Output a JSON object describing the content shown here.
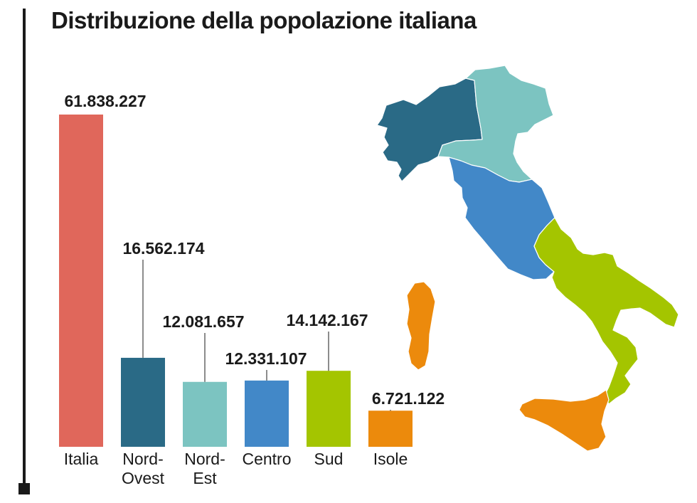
{
  "title": "Distribuzione della popolazione italiana",
  "chart_data": {
    "type": "bar",
    "title": "Distribuzione della popolazione italiana",
    "categories": [
      "Italia",
      "Nord-Ovest",
      "Nord-Est",
      "Centro",
      "Sud",
      "Isole"
    ],
    "category_lines": [
      [
        "Italia"
      ],
      [
        "Nord-",
        "Ovest"
      ],
      [
        "Nord-",
        "Est"
      ],
      [
        "Centro"
      ],
      [
        "Sud"
      ],
      [
        "Isole"
      ]
    ],
    "values": [
      61838227,
      16562174,
      12081657,
      12331107,
      14142167,
      6721122
    ],
    "value_labels": [
      "61.838.227",
      "16.562.174",
      "12.081.657",
      "12.331.107",
      "14.142.167",
      "6.721.122"
    ],
    "colors": [
      "#e0675b",
      "#2a6a86",
      "#7cc4c1",
      "#4288c8",
      "#a4c500",
      "#ec8a0c"
    ],
    "ylim": [
      0,
      61838227
    ],
    "xlabel": "",
    "ylabel": "",
    "grid": false,
    "legend": "none"
  },
  "map": {
    "regions": [
      {
        "name": "Nord-Ovest",
        "color": "#2a6a86"
      },
      {
        "name": "Nord-Est",
        "color": "#7cc4c1"
      },
      {
        "name": "Centro",
        "color": "#4288c8"
      },
      {
        "name": "Sud",
        "color": "#a4c500"
      },
      {
        "name": "Isole",
        "color": "#ec8a0c"
      }
    ]
  }
}
